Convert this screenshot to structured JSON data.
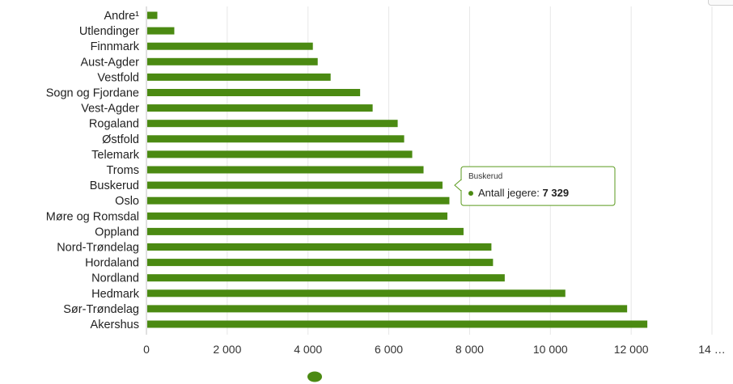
{
  "chart_data": {
    "type": "bar",
    "orientation": "horizontal",
    "categories": [
      "Andre¹",
      "Utlendinger",
      "Finnmark",
      "Aust-Agder",
      "Vestfold",
      "Sogn og Fjordane",
      "Vest-Agder",
      "Rogaland",
      "Østfold",
      "Telemark",
      "Troms",
      "Buskerud",
      "Oslo",
      "Møre og Romsdal",
      "Oppland",
      "Nord-Trøndelag",
      "Hordaland",
      "Nordland",
      "Hedmark",
      "Sør-Trøndelag",
      "Akershus"
    ],
    "series": [
      {
        "name": "Antall jegere",
        "color": "#4b8a12",
        "values": [
          270,
          690,
          4120,
          4240,
          4560,
          5290,
          5600,
          6220,
          6380,
          6580,
          6860,
          7329,
          7500,
          7450,
          7850,
          8540,
          8580,
          8870,
          10370,
          11900,
          12400
        ]
      }
    ],
    "x_ticks": [
      "0",
      "2 000",
      "4 000",
      "6 000",
      "8 000",
      "10 000",
      "12 000",
      "14 …"
    ],
    "xlim": [
      0,
      14000
    ],
    "grid": "vertical",
    "legend": "bottom-center",
    "tooltip": {
      "category": "Buskerud",
      "series_name": "Antall jegere",
      "value_label": "7 329"
    }
  }
}
